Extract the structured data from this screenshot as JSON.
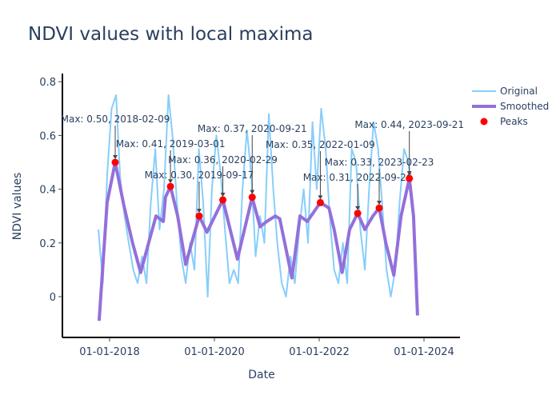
{
  "chart_data": {
    "type": "line",
    "title": "NDVI values with local maxima",
    "xlabel": "Date",
    "ylabel": "NDVI values",
    "ylim": [
      -0.15,
      0.83
    ],
    "xlim": [
      "2017-07-15",
      "2024-07-15"
    ],
    "x_ticks": [
      "01-01-2018",
      "01-01-2020",
      "01-01-2022",
      "01-01-2024"
    ],
    "x_tick_dates": [
      "2018-01-01",
      "2020-01-01",
      "2022-01-01",
      "2024-01-01"
    ],
    "y_ticks": [
      0,
      0.2,
      0.4,
      0.6,
      0.8
    ],
    "y_tick_labels": [
      "0",
      "0.2",
      "0.4",
      "0.6",
      "0.8"
    ],
    "grid": false,
    "legend_position": "top-right",
    "series": [
      {
        "name": "Original",
        "color": "#87cefa",
        "x": [
          "2017-10-15",
          "2017-11-15",
          "2017-12-15",
          "2018-01-15",
          "2018-02-15",
          "2018-03-15",
          "2018-04-15",
          "2018-05-15",
          "2018-06-15",
          "2018-07-15",
          "2018-08-15",
          "2018-09-15",
          "2018-10-15",
          "2018-11-15",
          "2018-12-15",
          "2019-01-15",
          "2019-02-15",
          "2019-03-15",
          "2019-04-15",
          "2019-05-15",
          "2019-06-15",
          "2019-07-15",
          "2019-08-15",
          "2019-09-15",
          "2019-10-15",
          "2019-11-15",
          "2019-12-15",
          "2020-01-15",
          "2020-02-15",
          "2020-03-15",
          "2020-04-15",
          "2020-05-15",
          "2020-06-15",
          "2020-07-15",
          "2020-08-15",
          "2020-09-15",
          "2020-10-15",
          "2020-11-15",
          "2020-12-15",
          "2021-01-15",
          "2021-02-15",
          "2021-03-15",
          "2021-04-15",
          "2021-05-15",
          "2021-06-15",
          "2021-07-15",
          "2021-08-15",
          "2021-09-15",
          "2021-10-15",
          "2021-11-15",
          "2021-12-15",
          "2022-01-15",
          "2022-02-15",
          "2022-03-15",
          "2022-04-15",
          "2022-05-15",
          "2022-06-15",
          "2022-07-15",
          "2022-08-15",
          "2022-09-15",
          "2022-10-15",
          "2022-11-15",
          "2022-12-15",
          "2023-01-15",
          "2023-02-15",
          "2023-03-15",
          "2023-04-15",
          "2023-05-15",
          "2023-06-15",
          "2023-07-15",
          "2023-08-15",
          "2023-09-15",
          "2023-10-15",
          "2023-11-15"
        ],
        "y": [
          0.25,
          0.05,
          0.45,
          0.7,
          0.75,
          0.45,
          0.3,
          0.2,
          0.1,
          0.05,
          0.15,
          0.05,
          0.35,
          0.55,
          0.25,
          0.4,
          0.75,
          0.6,
          0.35,
          0.15,
          0.05,
          0.2,
          0.1,
          0.55,
          0.35,
          0.0,
          0.4,
          0.6,
          0.45,
          0.25,
          0.05,
          0.1,
          0.05,
          0.4,
          0.62,
          0.45,
          0.15,
          0.3,
          0.2,
          0.68,
          0.4,
          0.2,
          0.05,
          0.0,
          0.15,
          0.05,
          0.25,
          0.4,
          0.2,
          0.65,
          0.4,
          0.7,
          0.55,
          0.3,
          0.1,
          0.05,
          0.2,
          0.05,
          0.55,
          0.5,
          0.25,
          0.1,
          0.4,
          0.65,
          0.55,
          0.35,
          0.1,
          0.0,
          0.1,
          0.35,
          0.55,
          0.5,
          0.35,
          0.05
        ]
      },
      {
        "name": "Smoothed",
        "color": "#9370db",
        "x": [
          "2017-10-20",
          "2017-12-15",
          "2018-02-09",
          "2018-04-10",
          "2018-06-10",
          "2018-08-05",
          "2018-10-10",
          "2018-11-20",
          "2019-01-10",
          "2019-01-25",
          "2019-03-01",
          "2019-04-20",
          "2019-06-15",
          "2019-09-17",
          "2019-11-10",
          "2020-02-29",
          "2020-06-10",
          "2020-09-21",
          "2020-11-15",
          "2021-01-01",
          "2021-03-01",
          "2021-04-01",
          "2021-06-25",
          "2021-08-20",
          "2021-10-10",
          "2022-01-09",
          "2022-03-10",
          "2022-04-15",
          "2022-06-10",
          "2022-08-01",
          "2022-09-26",
          "2022-11-15",
          "2023-01-10",
          "2023-02-23",
          "2023-04-10",
          "2023-06-05",
          "2023-07-25",
          "2023-09-21",
          "2023-10-20",
          "2023-11-17"
        ],
        "y": [
          -0.09,
          0.35,
          0.5,
          0.34,
          0.2,
          0.09,
          0.22,
          0.3,
          0.28,
          0.37,
          0.41,
          0.3,
          0.12,
          0.3,
          0.24,
          0.36,
          0.14,
          0.37,
          0.26,
          0.28,
          0.3,
          0.29,
          0.07,
          0.3,
          0.28,
          0.35,
          0.33,
          0.25,
          0.09,
          0.25,
          0.31,
          0.25,
          0.3,
          0.33,
          0.2,
          0.08,
          0.3,
          0.44,
          0.3,
          -0.07
        ]
      }
    ],
    "peaks": {
      "name": "Peaks",
      "color": "#ff0000",
      "x": [
        "2018-02-09",
        "2019-03-01",
        "2019-09-17",
        "2020-02-29",
        "2020-09-21",
        "2022-01-09",
        "2022-09-26",
        "2023-02-23",
        "2023-09-21"
      ],
      "y": [
        0.5,
        0.41,
        0.3,
        0.36,
        0.37,
        0.35,
        0.31,
        0.33,
        0.44
      ]
    },
    "annotations": [
      "Max: 0.50, 2018-02-09",
      "Max: 0.41, 2019-03-01",
      "Max: 0.30, 2019-09-17",
      "Max: 0.36, 2020-02-29",
      "Max: 0.37, 2020-09-21",
      "Max: 0.35, 2022-01-09",
      "Max: 0.31, 2022-09-26",
      "Max: 0.33, 2023-02-23",
      "Max: 0.44, 2023-09-21"
    ]
  }
}
